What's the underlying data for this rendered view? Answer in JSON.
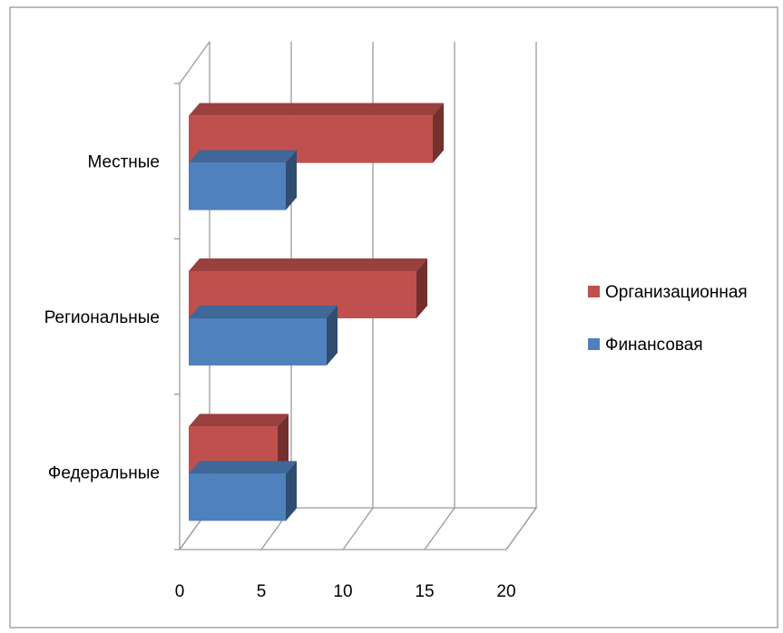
{
  "chart_data": {
    "type": "bar",
    "orientation": "horizontal",
    "style": "3d",
    "title": "",
    "xlabel": "",
    "ylabel": "",
    "categories": [
      "Федеральные",
      "Региональные",
      "Местные"
    ],
    "series": [
      {
        "name": "Организационная",
        "color": "#c0504d",
        "values": [
          6,
          14.5,
          15.5
        ]
      },
      {
        "name": "Финансовая",
        "color": "#4f81bd",
        "values": [
          6.5,
          9,
          6.5
        ]
      }
    ],
    "x_ticks": [
      "0",
      "5",
      "10",
      "15",
      "20"
    ],
    "xlim": [
      0,
      20
    ],
    "grid": true,
    "legend": "right"
  }
}
